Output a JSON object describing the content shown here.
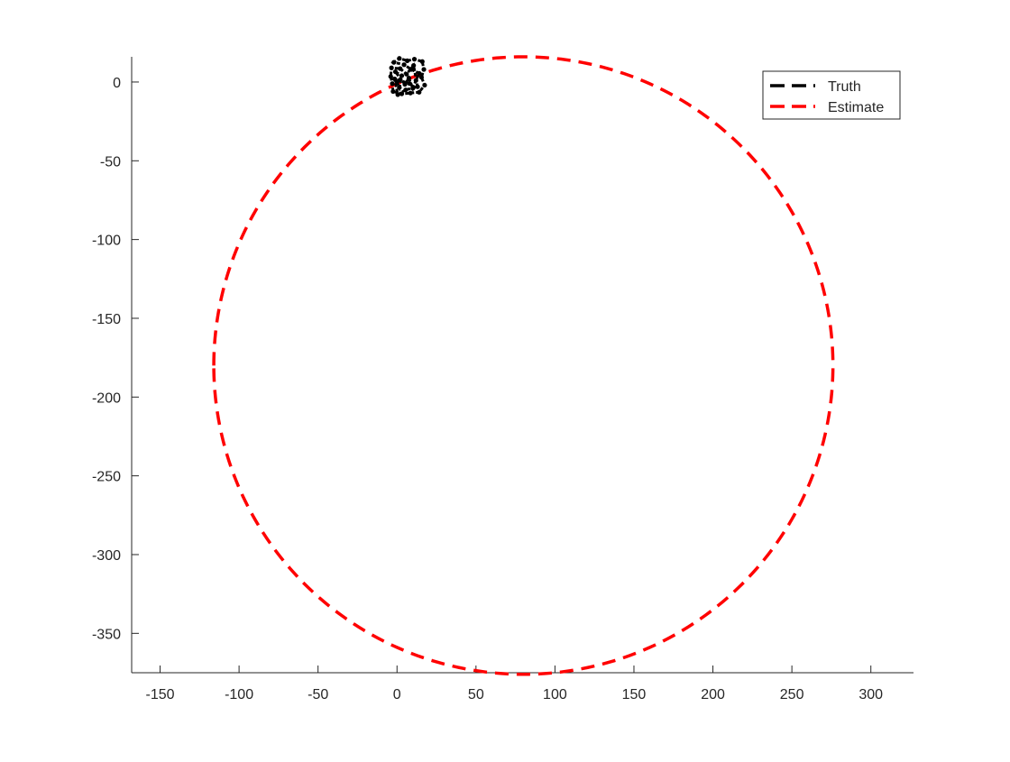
{
  "chart_data": {
    "type": "line",
    "title": "",
    "xlabel": "",
    "ylabel": "",
    "xlim": [
      -168,
      327
    ],
    "ylim": [
      -375,
      16
    ],
    "xticks": [
      -150,
      -100,
      -50,
      0,
      50,
      100,
      150,
      200,
      250,
      300
    ],
    "yticks": [
      0,
      -50,
      -100,
      -150,
      -200,
      -250,
      -300,
      -350
    ],
    "grid": false,
    "box": false,
    "legend_position": "top-right",
    "series": [
      {
        "name": "Truth",
        "color": "#000000",
        "style": "dashed",
        "points": [
          [
            0,
            0
          ],
          [
            1.5,
            -3.5
          ],
          [
            3.0,
            4.0
          ],
          [
            -1.0,
            6.5
          ],
          [
            5.0,
            -1.5
          ],
          [
            7.5,
            2.5
          ],
          [
            10.0,
            -4.0
          ],
          [
            12.0,
            1.0
          ],
          [
            14.0,
            5.5
          ],
          [
            9.0,
            8.0
          ],
          [
            4.5,
            11.0
          ],
          [
            -2.0,
            12.5
          ],
          [
            1.5,
            15.0
          ],
          [
            6.5,
            13.5
          ],
          [
            11.0,
            14.5
          ],
          [
            16.0,
            13.0
          ],
          [
            17.0,
            8.0
          ],
          [
            15.5,
            3.0
          ],
          [
            17.5,
            -2.0
          ],
          [
            14.0,
            -6.5
          ],
          [
            8.5,
            -7.0
          ],
          [
            3.0,
            -7.5
          ],
          [
            -2.5,
            -6.0
          ],
          [
            -3.0,
            -1.0
          ],
          [
            -4.0,
            3.5
          ],
          [
            -3.5,
            9.0
          ],
          [
            2.0,
            8.5
          ],
          [
            6.0,
            5.0
          ],
          [
            10.5,
            10.5
          ],
          [
            13.0,
            -3.0
          ],
          [
            5.5,
            -5.0
          ],
          [
            0.5,
            -8.0
          ],
          [
            -1.5,
            2.0
          ],
          [
            8.0,
            -1.0
          ]
        ]
      },
      {
        "name": "Estimate",
        "color": "#ff0000",
        "style": "dashed",
        "center": [
          80,
          -180
        ],
        "radius": 196,
        "theta_start_deg": 180,
        "theta_end_deg": -180
      }
    ]
  }
}
